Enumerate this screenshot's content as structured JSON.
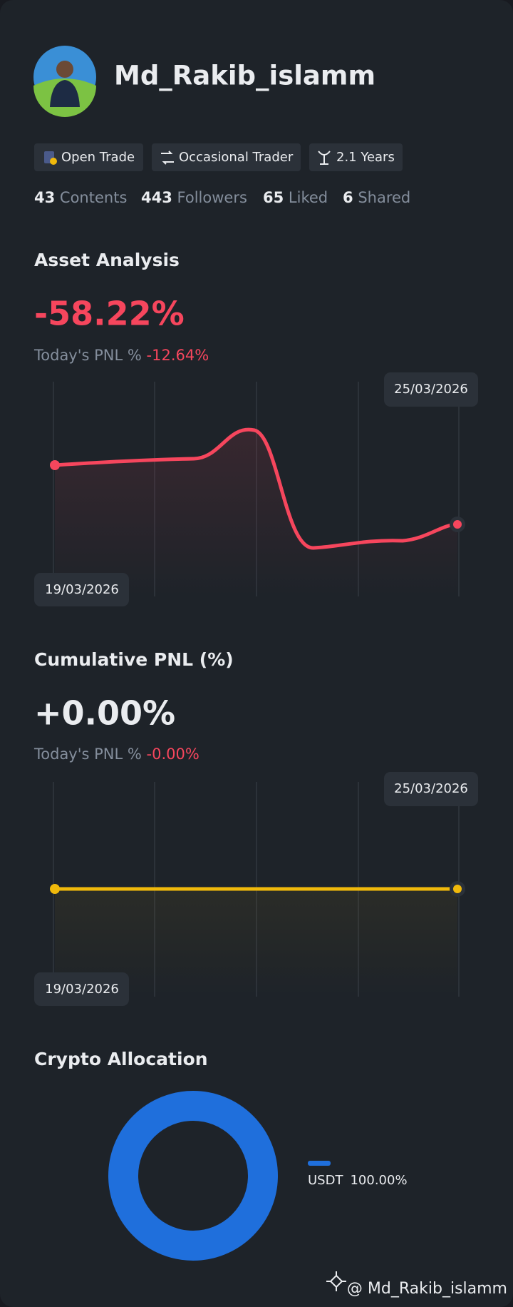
{
  "profile": {
    "username": "Md_Rakib_islamm",
    "badges": [
      "Open Trade",
      "Occasional Trader",
      "2.1 Years"
    ],
    "stats": [
      {
        "count": "43",
        "label": "Contents"
      },
      {
        "count": "443",
        "label": "Followers"
      },
      {
        "count": "65",
        "label": "Liked"
      },
      {
        "count": "6",
        "label": "Shared"
      }
    ]
  },
  "asset_analysis": {
    "title": "Asset Analysis",
    "value": "-58.22%",
    "today_label": "Today's PNL %",
    "today_value": "-12.64%",
    "start_date": "19/03/2026",
    "end_date": "25/03/2026"
  },
  "cumulative_pnl": {
    "title": "Cumulative PNL (%)",
    "value": "+0.00%",
    "today_label": "Today's PNL %",
    "today_value": "-0.00%",
    "start_date": "19/03/2026",
    "end_date": "25/03/2026"
  },
  "crypto_allocation": {
    "title": "Crypto Allocation",
    "items": [
      {
        "name": "USDT",
        "value": 100,
        "value_label": "100.00%",
        "color": "#1f6fdc"
      }
    ]
  },
  "footer": {
    "watermark": "@ Md_Rakib_islamm"
  }
}
